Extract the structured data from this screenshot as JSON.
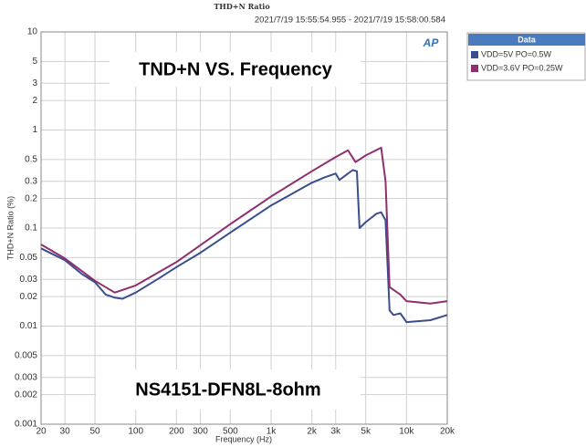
{
  "chart_data": {
    "type": "line",
    "title": "THD+N Ratio",
    "subtitle": "2021/7/19 15:55:54.955 - 2021/7/19 15:58:00.584",
    "logo": "AP",
    "annotations": [
      "TND+N VS. Frequency",
      "NS4151-DFN8L-8ohm"
    ],
    "x_label": "Frequency (Hz)",
    "y_label": "THD+N Ratio (%)",
    "legend_title": "Data",
    "legend_position": "outside-top-right",
    "x_log": true,
    "y_log": true,
    "grid": true,
    "xlim": [
      20,
      20000
    ],
    "ylim": [
      0.001,
      10
    ],
    "xticks": [
      20,
      30,
      50,
      100,
      200,
      300,
      500,
      {
        "value": 1000,
        "label": "1k"
      },
      {
        "value": 2000,
        "label": "2k"
      },
      {
        "value": 3000,
        "label": "3k"
      },
      {
        "value": 5000,
        "label": "5k"
      },
      {
        "value": 10000,
        "label": "10k"
      },
      {
        "value": 20000,
        "label": "20k"
      }
    ],
    "yticks": [
      0.001,
      0.002,
      0.003,
      0.005,
      0.01,
      0.02,
      0.03,
      0.05,
      0.1,
      0.2,
      0.3,
      0.5,
      1,
      2,
      3,
      5,
      10
    ],
    "series": [
      {
        "name": "VDD=5V PO=0.5W",
        "color": "#3a4d8c",
        "x": [
          20,
          30,
          40,
          50,
          60,
          70,
          80,
          100,
          150,
          200,
          300,
          500,
          1000,
          2000,
          2500,
          3000,
          3200,
          4000,
          4300,
          4500,
          5000,
          6000,
          6500,
          7000,
          7500,
          8000,
          9000,
          10000,
          15000,
          20000
        ],
        "values": [
          0.062,
          0.047,
          0.034,
          0.028,
          0.021,
          0.0195,
          0.019,
          0.022,
          0.031,
          0.04,
          0.056,
          0.09,
          0.17,
          0.29,
          0.33,
          0.36,
          0.31,
          0.39,
          0.38,
          0.1,
          0.115,
          0.14,
          0.145,
          0.12,
          0.0145,
          0.013,
          0.0135,
          0.011,
          0.0115,
          0.013
        ]
      },
      {
        "name": "VDD=3.6V PO=0.25W",
        "color": "#8e2f6e",
        "x": [
          20,
          30,
          50,
          70,
          100,
          200,
          500,
          1000,
          2000,
          3000,
          3700,
          4200,
          5000,
          6500,
          7000,
          7500,
          9000,
          10000,
          15000,
          20000
        ],
        "values": [
          0.068,
          0.049,
          0.029,
          0.022,
          0.026,
          0.045,
          0.11,
          0.21,
          0.38,
          0.53,
          0.62,
          0.47,
          0.55,
          0.66,
          0.3,
          0.025,
          0.021,
          0.018,
          0.017,
          0.018
        ]
      }
    ]
  }
}
